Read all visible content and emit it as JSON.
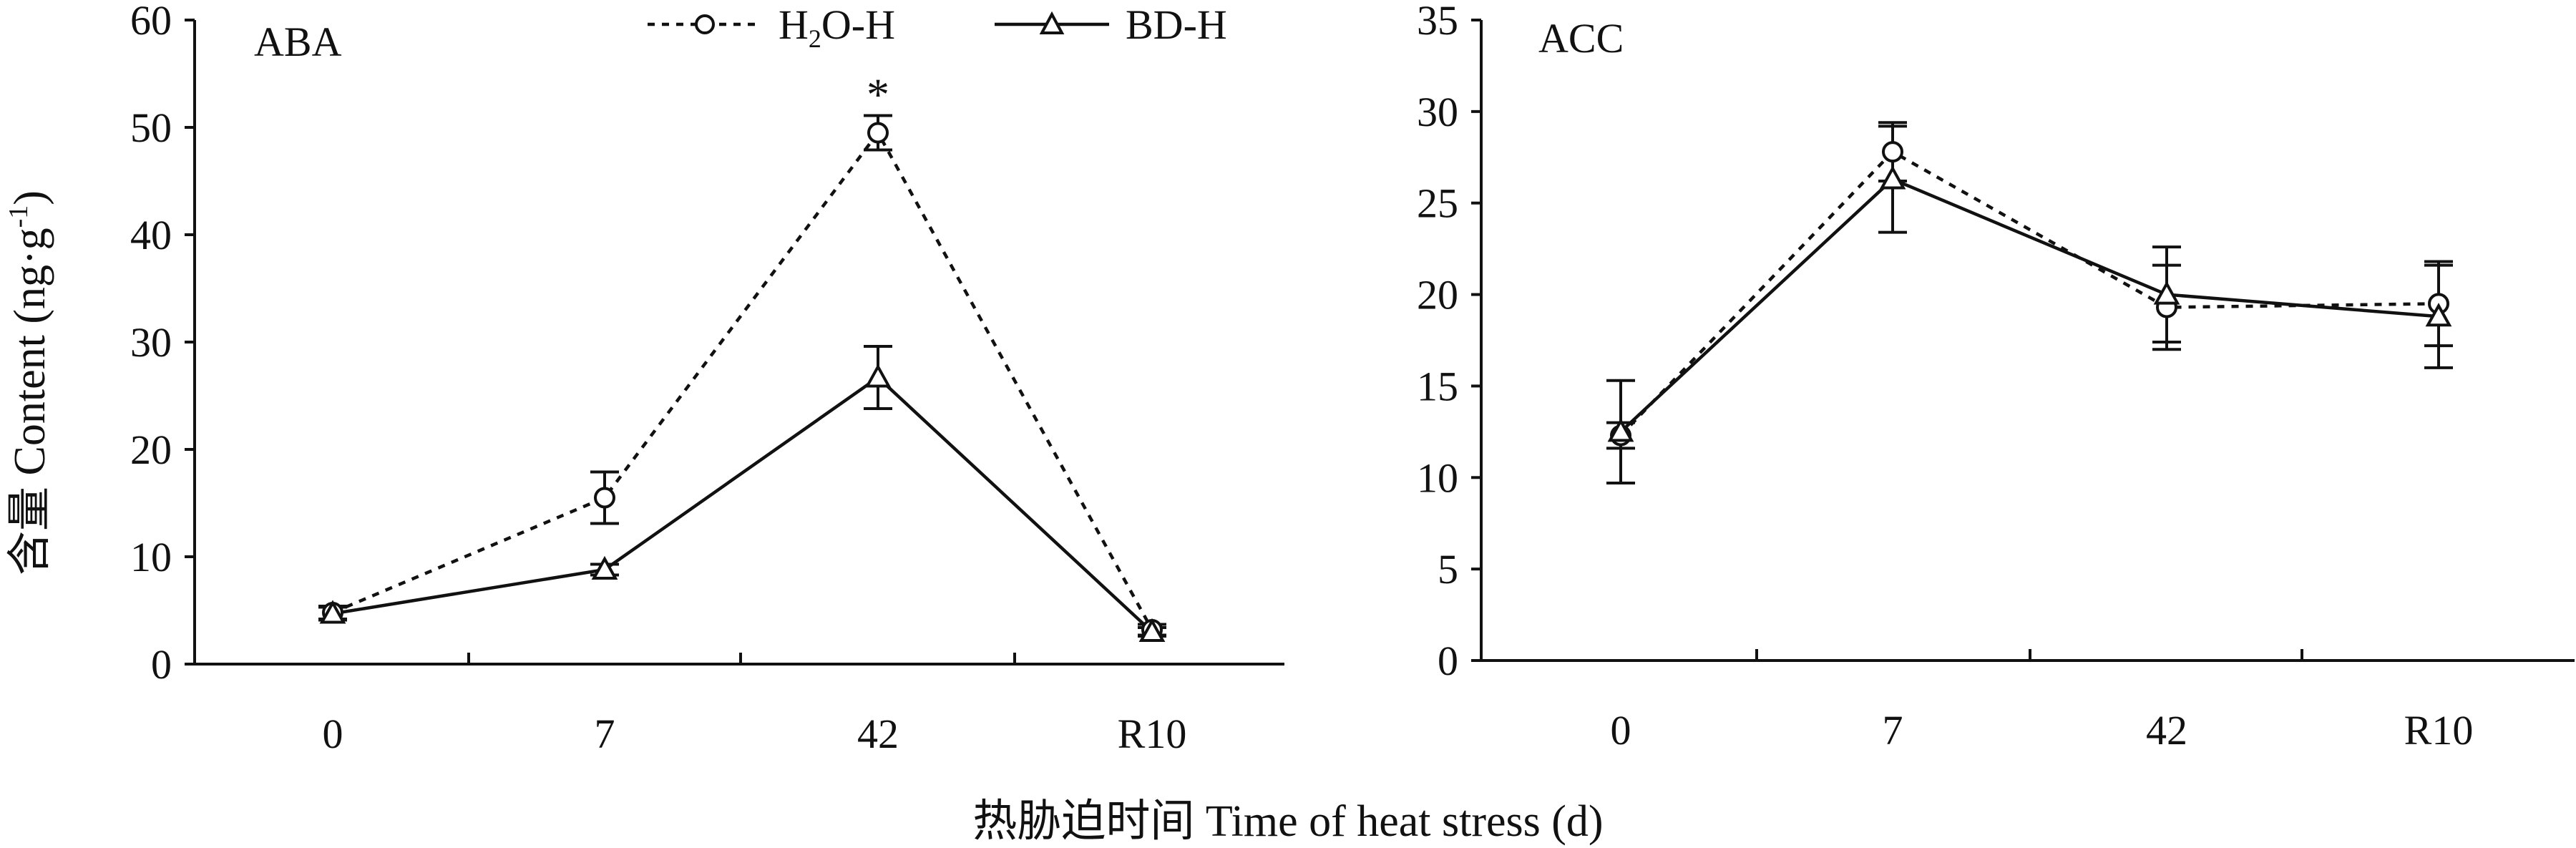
{
  "chart_data": [
    {
      "type": "line",
      "panel_label": "ABA",
      "categories": [
        "0",
        "7",
        "42",
        "R10"
      ],
      "ylim": [
        0,
        60
      ],
      "yticks": [
        "0",
        "10",
        "20",
        "30",
        "40",
        "50",
        "60"
      ],
      "series": [
        {
          "name": "H2O-H",
          "style": "dashed",
          "marker": "circle",
          "values": [
            4.8,
            15.5,
            49.5,
            3.2
          ],
          "errors": [
            0.6,
            2.4,
            1.6,
            0.5
          ]
        },
        {
          "name": "BD-H",
          "style": "solid",
          "marker": "triangle",
          "values": [
            4.7,
            8.8,
            26.7,
            3.0
          ],
          "errors": [
            0.6,
            0.5,
            2.9,
            0.4
          ]
        }
      ],
      "annotations": [
        {
          "text": "*",
          "category": "42",
          "y": 53.5
        }
      ]
    },
    {
      "type": "line",
      "panel_label": "ACC",
      "categories": [
        "0",
        "7",
        "42",
        "R10"
      ],
      "ylim": [
        0,
        35
      ],
      "yticks": [
        "0",
        "5",
        "10",
        "15",
        "20",
        "25",
        "30",
        "35"
      ],
      "series": [
        {
          "name": "H2O-H",
          "style": "dashed",
          "marker": "circle",
          "values": [
            12.3,
            27.8,
            19.3,
            19.5
          ],
          "errors": [
            0.7,
            1.6,
            2.3,
            2.3
          ]
        },
        {
          "name": "BD-H",
          "style": "solid",
          "marker": "triangle",
          "values": [
            12.5,
            26.3,
            20.0,
            18.8
          ],
          "errors": [
            2.8,
            2.9,
            2.6,
            2.8
          ]
        }
      ]
    }
  ],
  "legend": {
    "items": [
      {
        "label_main": "H",
        "label_sub": "2",
        "label_rest": "O-H",
        "style": "dashed",
        "marker": "circle"
      },
      {
        "label_main": "BD-H",
        "label_sub": "",
        "label_rest": "",
        "style": "solid",
        "marker": "triangle"
      }
    ],
    "placement": "top-center"
  },
  "axes": {
    "xlabel": "热胁迫时间 Time of heat stress (d)",
    "ylabel_main": "含量 Content (ng·g",
    "ylabel_sup": "-1",
    "ylabel_end": ")"
  },
  "colors": {
    "line": "#111111",
    "background": "#ffffff"
  }
}
